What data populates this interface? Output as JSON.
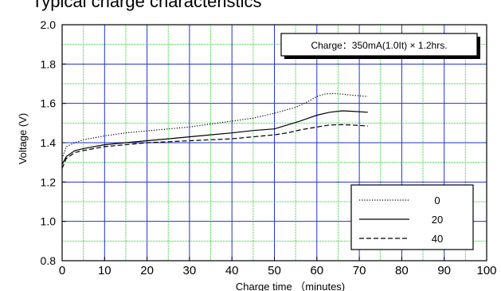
{
  "chart_data": {
    "type": "line",
    "title": "Typical charge characteristics",
    "xlabel": "Charge time （minutes)",
    "ylabel": "Voltage (V)",
    "xlim": [
      0,
      100
    ],
    "ylim": [
      0.8,
      2.0
    ],
    "x_ticks": [
      0,
      10,
      20,
      30,
      40,
      50,
      60,
      70,
      80,
      90,
      100
    ],
    "y_ticks": [
      0.8,
      1.0,
      1.2,
      1.4,
      1.6,
      1.8,
      2.0
    ],
    "annotation": "Charge：350mA(1.0It) × 1.2hrs.",
    "legend_position": "bottom-right",
    "grid": true,
    "colors": {
      "major_grid": "#2233cc",
      "minor_grid": "#22cc22",
      "series": "#000000"
    },
    "series": [
      {
        "name": "0",
        "style": "dotted",
        "points": [
          [
            0,
            1.32
          ],
          [
            1,
            1.38
          ],
          [
            3,
            1.4
          ],
          [
            5,
            1.415
          ],
          [
            10,
            1.435
          ],
          [
            15,
            1.45
          ],
          [
            20,
            1.46
          ],
          [
            25,
            1.47
          ],
          [
            30,
            1.48
          ],
          [
            35,
            1.495
          ],
          [
            40,
            1.51
          ],
          [
            45,
            1.525
          ],
          [
            50,
            1.55
          ],
          [
            55,
            1.58
          ],
          [
            58,
            1.61
          ],
          [
            60,
            1.635
          ],
          [
            62,
            1.648
          ],
          [
            64,
            1.65
          ],
          [
            66,
            1.647
          ],
          [
            68,
            1.642
          ],
          [
            72,
            1.635
          ]
        ]
      },
      {
        "name": "20",
        "style": "solid",
        "points": [
          [
            0,
            1.29
          ],
          [
            1,
            1.33
          ],
          [
            3,
            1.36
          ],
          [
            5,
            1.37
          ],
          [
            10,
            1.39
          ],
          [
            15,
            1.4
          ],
          [
            20,
            1.41
          ],
          [
            25,
            1.42
          ],
          [
            30,
            1.43
          ],
          [
            35,
            1.44
          ],
          [
            40,
            1.45
          ],
          [
            45,
            1.462
          ],
          [
            50,
            1.47
          ],
          [
            53,
            1.49
          ],
          [
            56,
            1.51
          ],
          [
            60,
            1.54
          ],
          [
            63,
            1.555
          ],
          [
            66,
            1.562
          ],
          [
            68,
            1.56
          ],
          [
            72,
            1.555
          ]
        ]
      },
      {
        "name": "40",
        "style": "dashed",
        "points": [
          [
            0,
            1.27
          ],
          [
            1,
            1.32
          ],
          [
            3,
            1.35
          ],
          [
            5,
            1.36
          ],
          [
            10,
            1.38
          ],
          [
            15,
            1.39
          ],
          [
            20,
            1.4
          ],
          [
            25,
            1.405
          ],
          [
            30,
            1.41
          ],
          [
            35,
            1.415
          ],
          [
            40,
            1.42
          ],
          [
            45,
            1.43
          ],
          [
            50,
            1.44
          ],
          [
            53,
            1.45
          ],
          [
            56,
            1.465
          ],
          [
            60,
            1.48
          ],
          [
            63,
            1.49
          ],
          [
            66,
            1.492
          ],
          [
            68,
            1.49
          ],
          [
            72,
            1.485
          ]
        ]
      }
    ]
  }
}
